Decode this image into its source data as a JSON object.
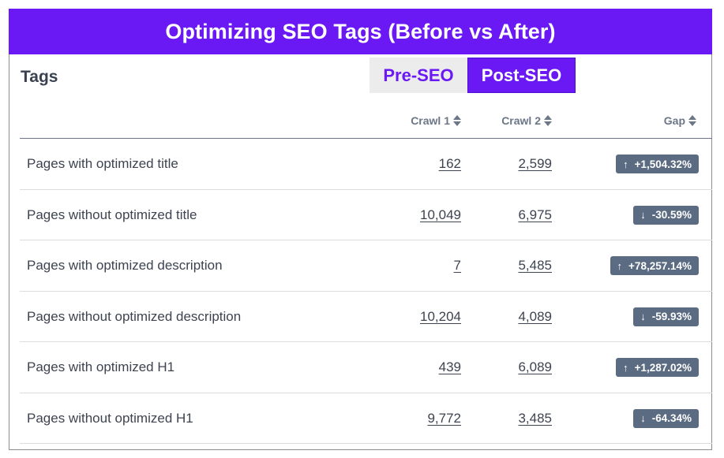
{
  "banner": {
    "title": "Optimizing SEO Tags (Before vs After)"
  },
  "card": {
    "title": "Tags"
  },
  "toggle": {
    "pre_label": "Pre-SEO",
    "post_label": "Post-SEO",
    "selected": "Post-SEO"
  },
  "table": {
    "columns": {
      "crawl1": "Crawl 1",
      "crawl2": "Crawl 2",
      "gap": "Gap"
    },
    "rows": [
      {
        "label": "Pages with optimized title",
        "crawl1": "162",
        "crawl2": "2,599",
        "gap": "+1,504.32%",
        "direction": "up"
      },
      {
        "label": "Pages without optimized title",
        "crawl1": "10,049",
        "crawl2": "6,975",
        "gap": "-30.59%",
        "direction": "down"
      },
      {
        "label": "Pages with optimized description",
        "crawl1": "7",
        "crawl2": "5,485",
        "gap": "+78,257.14%",
        "direction": "up"
      },
      {
        "label": "Pages without optimized description",
        "crawl1": "10,204",
        "crawl2": "4,089",
        "gap": "-59.93%",
        "direction": "down"
      },
      {
        "label": "Pages with optimized H1",
        "crawl1": "439",
        "crawl2": "6,089",
        "gap": "+1,287.02%",
        "direction": "up"
      },
      {
        "label": "Pages without optimized H1",
        "crawl1": "9,772",
        "crawl2": "3,485",
        "gap": "-64.34%",
        "direction": "down"
      }
    ]
  },
  "icons": {
    "up": "arrow-up-icon",
    "down": "arrow-down-icon",
    "sort": "sort-icon"
  },
  "colors": {
    "accent": "#6a19f5",
    "badge": "#5b6b82",
    "text": "#3d4350"
  }
}
